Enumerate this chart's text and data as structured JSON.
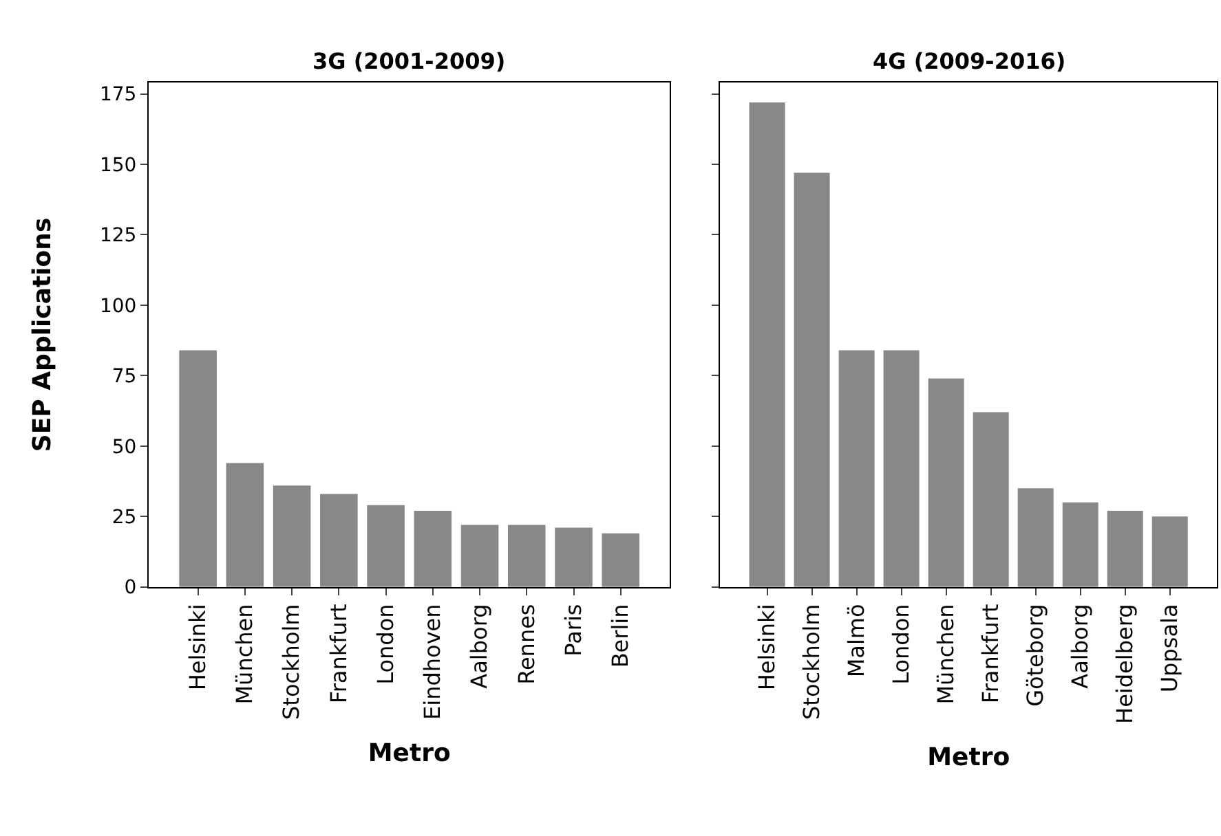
{
  "chart_data": [
    {
      "type": "bar",
      "title": "3G (2001-2009)",
      "xlabel": "Metro",
      "ylabel": "SEP Applications",
      "categories": [
        "Helsinki",
        "München",
        "Stockholm",
        "Frankfurt",
        "London",
        "Eindhoven",
        "Aalborg",
        "Rennes",
        "Paris",
        "Berlin"
      ],
      "values": [
        84,
        44,
        36,
        33,
        29,
        27,
        22,
        22,
        21,
        19
      ],
      "color": "#888888",
      "ylim": [
        0,
        179
      ],
      "yticks": [
        0,
        25,
        50,
        75,
        100,
        125,
        150,
        175
      ]
    },
    {
      "type": "bar",
      "title": "4G (2009-2016)",
      "xlabel": "Metro",
      "categories": [
        "Helsinki",
        "Stockholm",
        "Malmö",
        "London",
        "München",
        "Frankfurt",
        "Göteborg",
        "Aalborg",
        "Heidelberg",
        "Uppsala"
      ],
      "values": [
        172,
        147,
        84,
        84,
        74,
        62,
        35,
        30,
        27,
        25
      ],
      "color": "#888888",
      "ylim": [
        0,
        179
      ],
      "yticks": [
        0,
        25,
        50,
        75,
        100,
        125,
        150,
        175
      ],
      "tick_labels": "x"
    }
  ]
}
